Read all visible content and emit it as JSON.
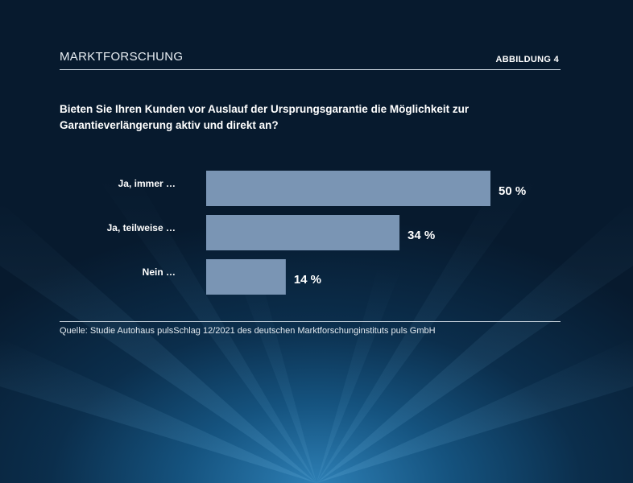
{
  "header": {
    "section_title": "MARKTFORSCHUNG",
    "figure_label": "ABBILDUNG 4"
  },
  "question": "Bieten Sie Ihren Kunden vor Auslauf der Ursprungsgarantie die Möglichkeit zur Garantieverlängerung aktiv und direkt an?",
  "chart_data": {
    "type": "bar",
    "orientation": "horizontal",
    "categories": [
      "Ja, immer …",
      "Ja, teilweise …",
      "Nein …"
    ],
    "values": [
      50,
      34,
      14
    ],
    "value_labels": [
      "50 %",
      "34 %",
      "14 %"
    ],
    "unit": "%",
    "xlim": [
      0,
      50
    ],
    "bar_color": "#7a95b4",
    "grid": false
  },
  "footer": {
    "source": "Quelle: Studie Autohaus pulsSchlag 12/2021 des deutschen Marktforschunginstituts puls GmbH"
  },
  "colors": {
    "background_dark": "#071a2e",
    "background_glow": "#2d7fb5",
    "bar": "#7a95b4",
    "text": "#ffffff"
  }
}
